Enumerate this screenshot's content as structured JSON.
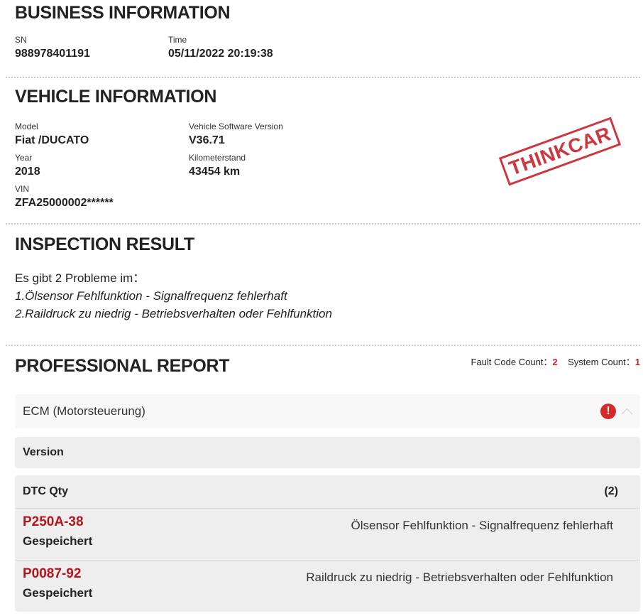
{
  "business": {
    "title": "BUSINESS INFORMATION",
    "sn_label": "SN",
    "sn": "988978401191",
    "time_label": "Time",
    "time": "05/11/2022 20:19:38"
  },
  "vehicle": {
    "title": "VEHICLE INFORMATION",
    "model_label": "Model",
    "model": "Fiat /DUCATO",
    "year_label": "Year",
    "year": "2018",
    "vin_label": "VIN",
    "vin": "ZFA25000002******",
    "sw_label": "Vehicle Software Version",
    "sw": "V36.71",
    "km_label": "Kilometerstand",
    "km": "43454 km",
    "stamp_text": "THINKCAR"
  },
  "inspection": {
    "title": "INSPECTION RESULT",
    "intro": "Es gibt 2 Probleme im：",
    "items": [
      "1.Ölsensor Fehlfunktion - Signalfrequenz fehlerhaft",
      "2.Raildruck zu niedrig - Betriebsverhalten oder Fehlfunktion"
    ]
  },
  "report": {
    "title": "PROFESSIONAL REPORT",
    "fault_label": "Fault Code Count：",
    "fault_count": "2",
    "system_label": "System Count：",
    "system_count": "1",
    "system": "ECM (Motorsteuerung)",
    "version_label": "Version",
    "dtc_label": "DTC Qty",
    "dtc_qty": "(2)",
    "dtcs": [
      {
        "code": "P250A-38",
        "status": "Gespeichert",
        "desc": "Ölsensor Fehlfunktion - Signalfrequenz fehlerhaft"
      },
      {
        "code": "P0087-92",
        "status": "Gespeichert",
        "desc": "Raildruck zu niedrig - Betriebsverhalten oder Fehlfunktion"
      }
    ],
    "accent": "#c8232c"
  }
}
